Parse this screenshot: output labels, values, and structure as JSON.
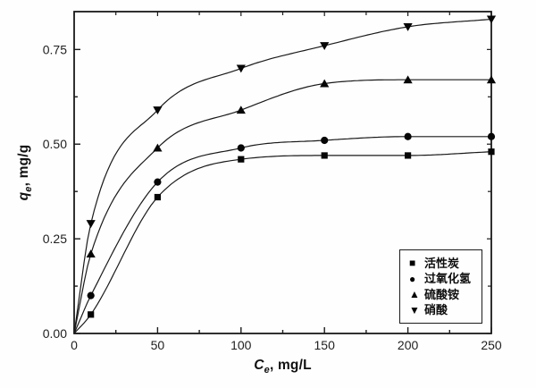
{
  "colors": {
    "ink": "#1a1a1a",
    "marker_fill": "#060606",
    "background": "#fefefe"
  },
  "chart_data": {
    "type": "scatter-line",
    "title": "",
    "x": [
      10,
      50,
      100,
      150,
      200,
      250
    ],
    "series": [
      {
        "name": "活性炭",
        "marker": "square",
        "values": [
          0.05,
          0.36,
          0.46,
          0.47,
          0.47,
          0.48
        ]
      },
      {
        "name": "过氧化氢",
        "marker": "circle",
        "values": [
          0.1,
          0.4,
          0.49,
          0.51,
          0.52,
          0.52
        ]
      },
      {
        "name": "硫酸铵",
        "marker": "triangle-up",
        "values": [
          0.21,
          0.49,
          0.59,
          0.66,
          0.67,
          0.67
        ]
      },
      {
        "name": "硝酸",
        "marker": "triangle-down",
        "values": [
          0.29,
          0.59,
          0.7,
          0.76,
          0.81,
          0.83
        ]
      }
    ],
    "fit_curves_through_origin": true,
    "xlabel": {
      "symbol": "C",
      "subscript": "e",
      "unit": ", mg/L"
    },
    "ylabel": {
      "symbol": "q",
      "subscript": "e",
      "unit": ", mg/g"
    },
    "xlim": [
      0,
      250
    ],
    "ylim": [
      0,
      0.85
    ],
    "x_major_ticks": [
      0,
      50,
      100,
      150,
      200,
      250
    ],
    "x_tick_labels": [
      "0",
      "50",
      "100",
      "150",
      "200",
      "250"
    ],
    "x_minor_step": 25,
    "y_major_ticks": [
      0,
      0.25,
      0.5,
      0.75
    ],
    "y_tick_labels": [
      "0.00",
      "0.25",
      "0.50",
      "0.75"
    ],
    "y_minor_step": 0.125,
    "grid": false,
    "legend_position": "bottom-right"
  },
  "legend": {
    "items": [
      {
        "glyph": "■",
        "label": "活性炭"
      },
      {
        "glyph": "●",
        "label": "过氧化氢"
      },
      {
        "glyph": "▲",
        "label": "硫酸铵"
      },
      {
        "glyph": "▼",
        "label": "硝酸"
      }
    ]
  }
}
